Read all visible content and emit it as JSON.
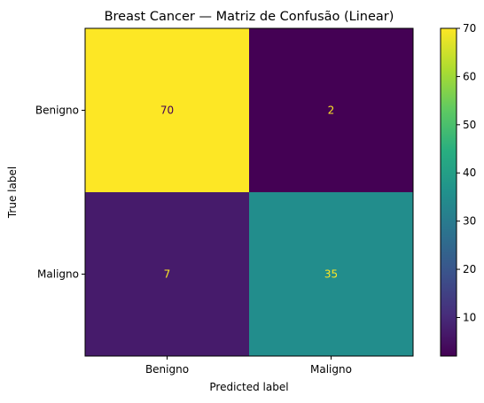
{
  "chart_data": {
    "type": "heatmap",
    "title": "Breast Cancer — Matriz de Confusão (Linear)",
    "xlabel": "Predicted label",
    "ylabel": "True label",
    "x_categories": [
      "Benigno",
      "Maligno"
    ],
    "y_categories": [
      "Benigno",
      "Maligno"
    ],
    "matrix": [
      [
        70,
        2
      ],
      [
        7,
        35
      ]
    ],
    "cell_labels": [
      [
        "70",
        "2"
      ],
      [
        "7",
        "35"
      ]
    ],
    "colormap": "viridis",
    "colorbar": {
      "range": [
        2,
        70
      ],
      "ticks": [
        10,
        20,
        30,
        40,
        50,
        60,
        70
      ],
      "tick_labels": [
        "10",
        "20",
        "30",
        "40",
        "50",
        "60",
        "70"
      ]
    },
    "label_colors": {
      "on_dark": "#fde725",
      "on_light": "#440154"
    }
  }
}
